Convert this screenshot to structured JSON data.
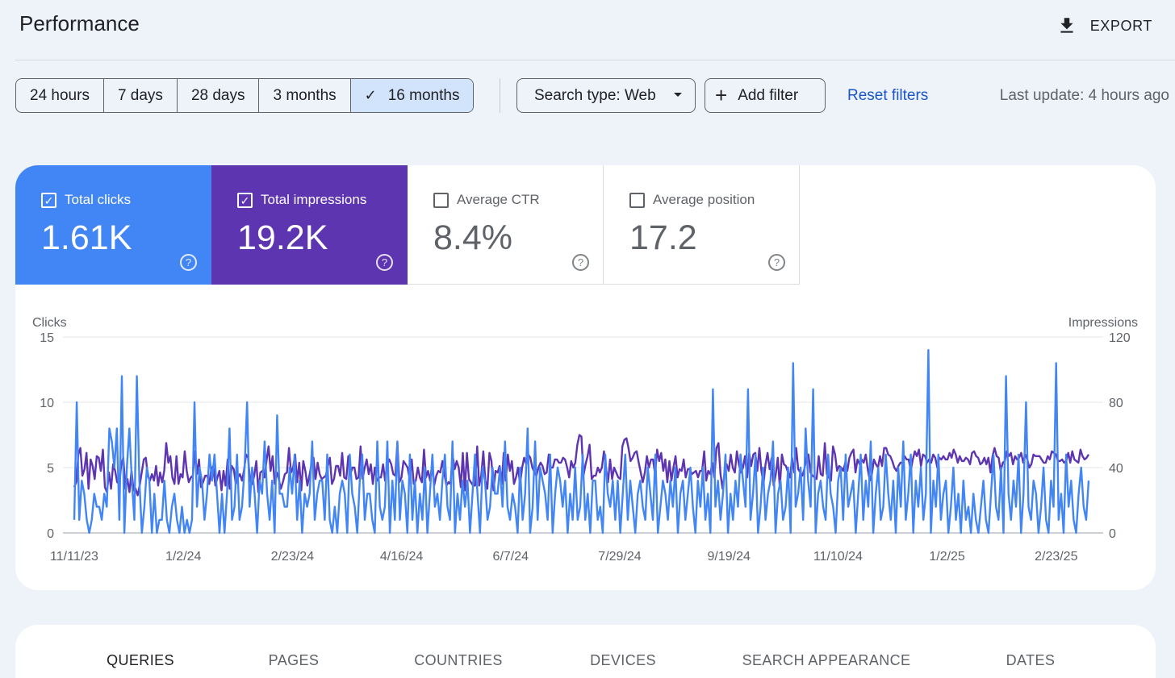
{
  "header": {
    "title": "Performance",
    "export_label": "EXPORT"
  },
  "filters": {
    "date_ranges": [
      "24 hours",
      "7 days",
      "28 days",
      "3 months",
      "16 months"
    ],
    "active_range_index": 4,
    "search_type": "Search type: Web",
    "add_filter": "Add filter",
    "reset": "Reset filters",
    "last_update": "Last update: 4 hours ago"
  },
  "metrics": [
    {
      "label": "Total clicks",
      "value": "1.61K",
      "checked": true,
      "color": "#4285f4"
    },
    {
      "label": "Total impressions",
      "value": "19.2K",
      "checked": true,
      "color": "#5e35b1"
    },
    {
      "label": "Average CTR",
      "value": "8.4%",
      "checked": false
    },
    {
      "label": "Average position",
      "value": "17.2",
      "checked": false
    }
  ],
  "chart_data": {
    "type": "line",
    "left_axis_label": "Clicks",
    "right_axis_label": "Impressions",
    "left_ticks": [
      "15",
      "10",
      "5",
      "0"
    ],
    "right_ticks": [
      "120",
      "80",
      "40",
      "0"
    ],
    "ylim_left": [
      0,
      15
    ],
    "ylim_right": [
      0,
      120
    ],
    "x_tick_labels": [
      "11/11/23",
      "1/2/24",
      "2/23/24",
      "4/16/24",
      "6/7/24",
      "7/29/24",
      "9/19/24",
      "11/10/24",
      "1/2/25",
      "2/23/25"
    ],
    "series": [
      {
        "name": "Impressions",
        "axis": "right",
        "color": "#5e35b1",
        "values": [
          28,
          31,
          48,
          52,
          35,
          39,
          49,
          27,
          45,
          41,
          33,
          47,
          46,
          38,
          51,
          28,
          25,
          37,
          27,
          42,
          38,
          31,
          30,
          42,
          46,
          27,
          33,
          25,
          38,
          26,
          27,
          23,
          29,
          37,
          45,
          46,
          35,
          32,
          36,
          32,
          41,
          29,
          37,
          31,
          38,
          55,
          43,
          47,
          34,
          30,
          47,
          30,
          36,
          34,
          50,
          38,
          31,
          34,
          35,
          50,
          36,
          45,
          28,
          31,
          35,
          35,
          30,
          39,
          41,
          29,
          34,
          38,
          26,
          38,
          29,
          45,
          27,
          41,
          39,
          30,
          34,
          36,
          32,
          38,
          48,
          46,
          32,
          30,
          35,
          44,
          25,
          37,
          38,
          34,
          44,
          53,
          38,
          47,
          30,
          37,
          33,
          27,
          31,
          36,
          37,
          52,
          37,
          40,
          48,
          31,
          43,
          26,
          44,
          38,
          29,
          35,
          42,
          46,
          33,
          43,
          36,
          33,
          34,
          35,
          41,
          46,
          30,
          33,
          41,
          41,
          35,
          49,
          34,
          33,
          47,
          36,
          40,
          40,
          33,
          34,
          53,
          33,
          40,
          45,
          36,
          42,
          30,
          40,
          32,
          34,
          34,
          42,
          32,
          42,
          45,
          42,
          36,
          35,
          55,
          31,
          34,
          44,
          42,
          40,
          33,
          45,
          30,
          32,
          40,
          34,
          31,
          51,
          34,
          38,
          32,
          42,
          29,
          35,
          38,
          37,
          44,
          36,
          29,
          31,
          30,
          48,
          39,
          44,
          40,
          28,
          49,
          26,
          49,
          33,
          31,
          29,
          29,
          53,
          29,
          35,
          50,
          32,
          27,
          49,
          44,
          26,
          38,
          37,
          41,
          30,
          49,
          32,
          48,
          38,
          44,
          30,
          34,
          40,
          30,
          40,
          46,
          42,
          48,
          46,
          40,
          37,
          35,
          40,
          43,
          41,
          36,
          37,
          48,
          40,
          40,
          45,
          45,
          43,
          43,
          46,
          45,
          40,
          34,
          44,
          40,
          43,
          54,
          60,
          59,
          35,
          42,
          47,
          54,
          33,
          35,
          35,
          40,
          37,
          40,
          50,
          40,
          31,
          45,
          33,
          40,
          37,
          34,
          33,
          53,
          57,
          58,
          52,
          44,
          46,
          49,
          50,
          43,
          37,
          31,
          37,
          47,
          40,
          45,
          45,
          36,
          51,
          44,
          49,
          38,
          45,
          31,
          44,
          32,
          40,
          47,
          34,
          39,
          38,
          45,
          34,
          39,
          39,
          36,
          37,
          38,
          34,
          38,
          38,
          50,
          32,
          38,
          36,
          43,
          34,
          52,
          55,
          36,
          27,
          37,
          42,
          38,
          48,
          40,
          37,
          50,
          42,
          37,
          40,
          47,
          34,
          49,
          41,
          48,
          49,
          38,
          52,
          38,
          30,
          42,
          49,
          39,
          46,
          29,
          36,
          46,
          28,
          48,
          42,
          41,
          37,
          34,
          46,
          37,
          52,
          39,
          37,
          35,
          39,
          46,
          48,
          37,
          35,
          34,
          33,
          47,
          36,
          35,
          55,
          36,
          34,
          32,
          53,
          48,
          38,
          41,
          40,
          38,
          43,
          38,
          46,
          49,
          51,
          37,
          45,
          42,
          45,
          43,
          48,
          39,
          32,
          36,
          45,
          42,
          40,
          47,
          41,
          52,
          52,
          48,
          47,
          44,
          40,
          38,
          41,
          43,
          43,
          47,
          45,
          45,
          38,
          45,
          50,
          47,
          51,
          41,
          48,
          47,
          43,
          45,
          43,
          48,
          46,
          40,
          46,
          45,
          47,
          45,
          45,
          49,
          46,
          51,
          48,
          43,
          47,
          44,
          44,
          46,
          45,
          42,
          49,
          50,
          47,
          46,
          42,
          43,
          46,
          42,
          46,
          37,
          47,
          52,
          47,
          46,
          38,
          43,
          44,
          50,
          47,
          49,
          42,
          47,
          45,
          46,
          49,
          43,
          48,
          45,
          40,
          42,
          48,
          47,
          47,
          47,
          45,
          43,
          43,
          47,
          45,
          50,
          49,
          48,
          44,
          44,
          45,
          43,
          44,
          49,
          43,
          50,
          45,
          44,
          43,
          51,
          47,
          45,
          46,
          48
        ]
      },
      {
        "name": "Clicks",
        "axis": "left",
        "color": "#4285f4",
        "values": [
          1,
          10,
          1,
          4,
          3,
          1,
          0,
          1,
          3,
          2,
          2,
          1,
          3,
          2,
          8,
          7,
          5,
          8,
          1,
          12,
          0,
          5,
          8,
          4,
          1,
          12,
          4,
          0,
          2,
          5,
          4,
          0,
          3,
          0,
          1,
          1,
          4,
          1,
          0,
          2,
          3,
          1,
          0,
          2,
          0,
          1,
          0,
          1,
          10,
          2,
          5,
          4,
          1,
          3,
          6,
          4,
          6,
          3,
          0,
          3,
          0,
          3,
          8,
          1,
          2,
          6,
          1,
          2,
          5,
          10,
          2,
          5,
          3,
          0,
          4,
          3,
          7,
          3,
          1,
          4,
          0,
          9,
          3,
          3,
          2,
          2,
          5,
          3,
          6,
          1,
          4,
          0,
          3,
          2,
          3,
          7,
          1,
          3,
          4,
          4,
          1,
          6,
          1,
          0,
          2,
          0,
          3,
          4,
          3,
          0,
          6,
          3,
          2,
          0,
          4,
          6,
          1,
          3,
          3,
          1,
          0,
          7,
          2,
          1,
          2,
          7,
          0,
          4,
          1,
          7,
          1,
          4,
          3,
          0,
          6,
          1,
          4,
          0,
          3,
          1,
          5,
          0,
          3,
          6,
          2,
          3,
          1,
          4,
          6,
          2,
          1,
          7,
          0,
          3,
          1,
          4,
          2,
          4,
          0,
          3,
          6,
          3,
          0,
          5,
          4,
          1,
          2,
          5,
          3,
          3,
          5,
          2,
          7,
          2,
          1,
          3,
          2,
          0,
          5,
          1,
          3,
          8,
          0,
          2,
          7,
          1,
          5,
          4,
          3,
          1,
          6,
          0,
          3,
          5,
          4,
          2,
          4,
          0,
          3,
          1,
          5,
          1,
          2,
          6,
          1,
          3,
          0,
          4,
          4,
          1,
          2,
          0,
          6,
          3,
          2,
          4,
          1,
          4,
          0,
          3,
          6,
          1,
          4,
          2,
          0,
          3,
          4,
          2,
          1,
          5,
          3,
          1,
          6,
          0,
          2,
          4,
          3,
          1,
          4,
          2,
          5,
          0,
          3,
          4,
          1,
          3,
          5,
          2,
          0,
          4,
          2,
          5,
          1,
          3,
          0,
          11,
          2,
          4,
          1,
          3,
          6,
          0,
          3,
          1,
          4,
          2,
          6,
          4,
          2,
          11,
          1,
          3,
          6,
          0,
          2,
          5,
          1,
          3,
          4,
          7,
          0,
          3,
          4,
          1,
          2,
          5,
          0,
          13,
          2,
          3,
          5,
          1,
          8,
          4,
          2,
          11,
          0,
          3,
          4,
          2,
          1,
          6,
          3,
          2,
          0,
          4,
          5,
          1,
          6,
          2,
          3,
          4,
          0,
          3,
          6,
          1,
          4,
          2,
          7,
          0,
          3,
          5,
          1,
          2,
          6,
          3,
          1,
          4,
          0,
          5,
          2,
          7,
          1,
          3,
          6,
          0,
          4,
          2,
          5,
          1,
          3,
          14,
          0,
          4,
          2,
          6,
          1,
          3,
          4,
          0,
          2,
          5,
          1,
          3,
          0,
          4,
          1,
          2,
          0,
          3,
          1,
          0,
          2,
          4,
          1,
          0,
          3,
          6,
          2,
          1,
          5,
          0,
          12,
          3,
          1,
          4,
          2,
          6,
          0,
          3,
          10,
          2,
          1,
          4,
          3,
          0,
          2,
          5,
          1,
          0,
          4,
          2,
          13,
          1,
          3,
          0,
          6,
          2,
          4,
          1,
          0,
          3,
          5,
          2,
          1,
          4
        ]
      }
    ]
  },
  "tabs": {
    "items": [
      "QUERIES",
      "PAGES",
      "COUNTRIES",
      "DEVICES",
      "SEARCH APPEARANCE",
      "DATES"
    ],
    "active_index": 0
  }
}
